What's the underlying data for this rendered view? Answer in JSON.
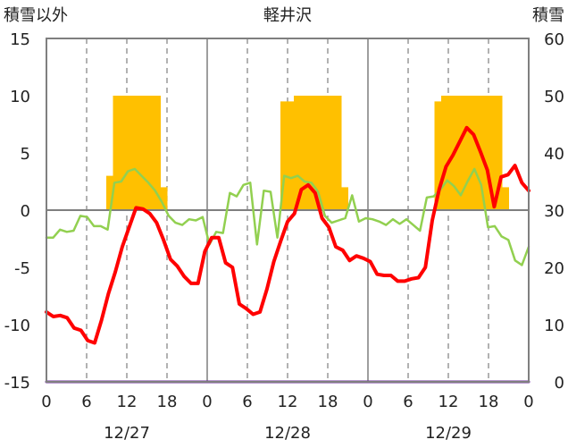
{
  "chart_data": {
    "type": "line+bar",
    "title": "軽井沢",
    "left_axis": {
      "label": "積雪以外",
      "range": [
        -15,
        15
      ],
      "ticks": [
        15,
        10,
        5,
        0,
        -5,
        -10,
        -15
      ]
    },
    "right_axis": {
      "label": "積雪",
      "range": [
        0,
        60
      ],
      "ticks": [
        60,
        50,
        40,
        30,
        20,
        10,
        0
      ]
    },
    "x_axis": {
      "unit": "hours",
      "range": [
        0,
        72
      ],
      "tick_labels": [
        "0",
        "6",
        "12",
        "18",
        "0",
        "6",
        "12",
        "18",
        "0",
        "6",
        "12",
        "18",
        "0"
      ],
      "date_labels": [
        {
          "label": "12/27",
          "center_hour": 12
        },
        {
          "label": "12/28",
          "center_hour": 36
        },
        {
          "label": "12/29",
          "center_hour": 60
        }
      ],
      "day_boundaries": [
        24,
        48
      ],
      "dashed_gridlines": [
        6,
        12,
        18,
        30,
        36,
        42,
        54,
        60,
        66
      ]
    },
    "series": [
      {
        "kind": "bar",
        "axis": "right",
        "color": "#FFC000",
        "values": [
          0,
          0,
          0,
          0,
          0,
          0,
          0,
          0,
          0,
          36,
          50,
          50,
          50,
          50,
          50,
          50,
          50,
          34,
          0,
          0,
          0,
          0,
          0,
          0,
          0,
          0,
          0,
          0,
          0,
          0,
          0,
          0,
          0,
          0,
          0,
          49,
          49,
          50,
          50,
          50,
          50,
          50,
          50,
          50,
          34,
          0,
          0,
          0,
          0,
          0,
          0,
          0,
          0,
          0,
          0,
          0,
          0,
          0,
          49,
          50,
          50,
          50,
          50,
          50,
          50,
          50,
          50,
          50,
          34,
          0,
          0,
          0
        ]
      },
      {
        "kind": "line",
        "axis": "left",
        "color": "#92D050",
        "values": [
          -2.4,
          -2.4,
          -1.7,
          -1.9,
          -1.8,
          -0.5,
          -0.6,
          -1.4,
          -1.4,
          -1.7,
          2.4,
          2.5,
          3.4,
          3.6,
          3.0,
          2.4,
          1.7,
          0.7,
          -0.5,
          -1.1,
          -1.3,
          -0.8,
          -0.9,
          -0.6,
          -3.0,
          -1.9,
          -2.0,
          1.5,
          1.2,
          2.2,
          2.4,
          -3.0,
          1.7,
          1.6,
          -2.4,
          3.0,
          2.8,
          3.0,
          2.5,
          2.4,
          1.6,
          -0.5,
          -1.1,
          -0.9,
          -0.7,
          1.3,
          -1.0,
          -0.7,
          -0.8,
          -1.0,
          -1.3,
          -0.8,
          -1.2,
          -0.8,
          -1.3,
          -1.8,
          1.1,
          1.2,
          1.8,
          2.6,
          2.1,
          1.3,
          2.5,
          3.6,
          2.2,
          -1.5,
          -1.4,
          -2.3,
          -2.6,
          -4.4,
          -4.8,
          -3.2
        ]
      },
      {
        "kind": "line",
        "axis": "left",
        "color": "#FF0000",
        "values": [
          -8.9,
          -9.3,
          -9.2,
          -9.4,
          -10.3,
          -10.5,
          -11.4,
          -11.6,
          -9.6,
          -7.3,
          -5.4,
          -3.2,
          -1.5,
          0.2,
          0.1,
          -0.3,
          -1.1,
          -2.6,
          -4.3,
          -4.9,
          -5.8,
          -6.4,
          -6.4,
          -3.6,
          -2.4,
          -2.4,
          -4.6,
          -5.0,
          -8.2,
          -8.6,
          -9.1,
          -8.9,
          -6.9,
          -4.5,
          -2.7,
          -1.0,
          -0.3,
          1.8,
          2.2,
          1.5,
          -0.7,
          -1.5,
          -3.2,
          -3.5,
          -4.4,
          -4.0,
          -4.2,
          -4.5,
          -5.6,
          -5.7,
          -5.7,
          -6.2,
          -6.2,
          -6.0,
          -5.9,
          -5.0,
          -0.9,
          1.8,
          3.8,
          4.8,
          6.0,
          7.2,
          6.6,
          5.1,
          3.5,
          0.3,
          2.9,
          3.1,
          3.9,
          2.4,
          1.7
        ]
      },
      {
        "kind": "line",
        "axis": "right",
        "color": "#7030A0",
        "values": [
          0,
          0
        ]
      }
    ]
  }
}
